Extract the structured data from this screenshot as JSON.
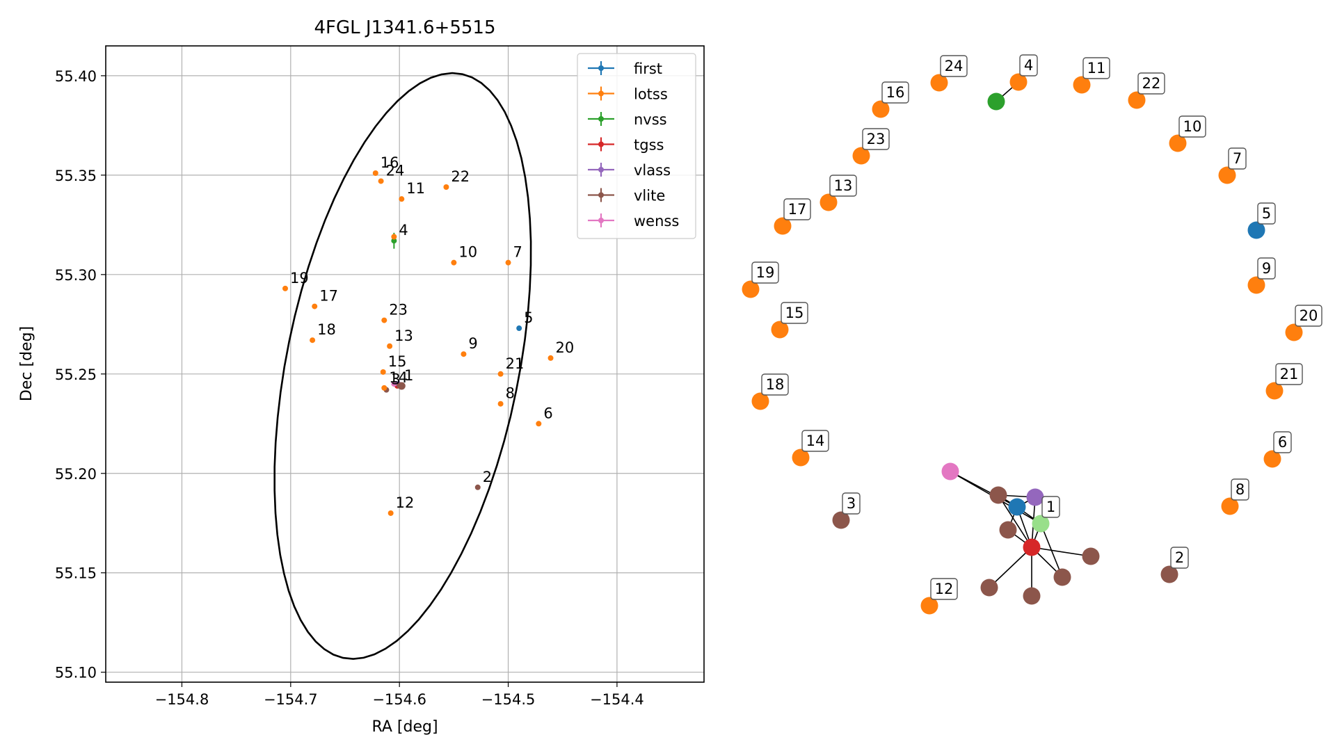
{
  "chart_data": [
    {
      "type": "scatter",
      "title": "4FGL J1341.6+5515",
      "xlabel": "RA [deg]",
      "ylabel": "Dec [deg]",
      "xlim": [
        -154.87,
        -154.32
      ],
      "ylim": [
        55.095,
        55.415
      ],
      "xticks": [
        -154.8,
        -154.7,
        -154.6,
        -154.5,
        -154.4
      ],
      "yticks": [
        55.1,
        55.15,
        55.2,
        55.25,
        55.3,
        55.35,
        55.4
      ],
      "xtick_labels": [
        "−154.8",
        "−154.7",
        "−154.6",
        "−154.5",
        "−154.4"
      ],
      "ytick_labels": [
        "55.10",
        "55.15",
        "55.20",
        "55.25",
        "55.30",
        "55.35",
        "55.40"
      ],
      "grid": true,
      "legend_position": "top-right",
      "legend": [
        {
          "label": "first",
          "color": "#1f77b4"
        },
        {
          "label": "lotss",
          "color": "#ff7f0e"
        },
        {
          "label": "nvss",
          "color": "#2ca02c"
        },
        {
          "label": "tgss",
          "color": "#d62728"
        },
        {
          "label": "vlass",
          "color": "#9467bd"
        },
        {
          "label": "vlite",
          "color": "#8c564b"
        },
        {
          "label": "wenss",
          "color": "#e377c2"
        }
      ],
      "ellipse": {
        "center": [
          -154.597,
          55.254
        ],
        "semi_axes": [
          0.16,
          0.1
        ],
        "angle_deg": 60
      },
      "points": [
        {
          "survey": "first",
          "ra": -154.49,
          "dec": 55.273,
          "label": "5"
        },
        {
          "survey": "first",
          "ra": -154.603,
          "dec": 55.245
        },
        {
          "survey": "nvss",
          "ra": -154.605,
          "dec": 55.317,
          "label": "4",
          "yerr": 0.004
        },
        {
          "survey": "tgss",
          "ra": -154.602,
          "dec": 55.244
        },
        {
          "survey": "vlass",
          "ra": -154.601,
          "dec": 55.245
        },
        {
          "survey": "wenss",
          "ra": -154.605,
          "dec": 55.245
        },
        {
          "survey": "vlite",
          "ra": -154.6,
          "dec": 55.244,
          "label": "1"
        },
        {
          "survey": "vlite",
          "ra": -154.598,
          "dec": 55.244
        },
        {
          "survey": "vlite",
          "ra": -154.612,
          "dec": 55.242,
          "label": "3"
        },
        {
          "survey": "vlite",
          "ra": -154.528,
          "dec": 55.193,
          "label": "2"
        },
        {
          "survey": "lotss",
          "ra": -154.622,
          "dec": 55.351,
          "label": "16"
        },
        {
          "survey": "lotss",
          "ra": -154.617,
          "dec": 55.347,
          "label": "24"
        },
        {
          "survey": "lotss",
          "ra": -154.557,
          "dec": 55.344,
          "label": "22"
        },
        {
          "survey": "lotss",
          "ra": -154.598,
          "dec": 55.338,
          "label": "11"
        },
        {
          "survey": "lotss",
          "ra": -154.605,
          "dec": 55.319
        },
        {
          "survey": "lotss",
          "ra": -154.55,
          "dec": 55.306,
          "label": "10"
        },
        {
          "survey": "lotss",
          "ra": -154.5,
          "dec": 55.306,
          "label": "7"
        },
        {
          "survey": "lotss",
          "ra": -154.705,
          "dec": 55.293,
          "label": "19"
        },
        {
          "survey": "lotss",
          "ra": -154.678,
          "dec": 55.284,
          "label": "17"
        },
        {
          "survey": "lotss",
          "ra": -154.614,
          "dec": 55.277,
          "label": "23"
        },
        {
          "survey": "lotss",
          "ra": -154.68,
          "dec": 55.267,
          "label": "18"
        },
        {
          "survey": "lotss",
          "ra": -154.609,
          "dec": 55.264,
          "label": "13"
        },
        {
          "survey": "lotss",
          "ra": -154.541,
          "dec": 55.26,
          "label": "9"
        },
        {
          "survey": "lotss",
          "ra": -154.461,
          "dec": 55.258,
          "label": "20"
        },
        {
          "survey": "lotss",
          "ra": -154.615,
          "dec": 55.251,
          "label": "15"
        },
        {
          "survey": "lotss",
          "ra": -154.507,
          "dec": 55.25,
          "label": "21"
        },
        {
          "survey": "lotss",
          "ra": -154.614,
          "dec": 55.243,
          "label": "14"
        },
        {
          "survey": "lotss",
          "ra": -154.507,
          "dec": 55.235,
          "label": "8"
        },
        {
          "survey": "lotss",
          "ra": -154.472,
          "dec": 55.225,
          "label": "6"
        },
        {
          "survey": "lotss",
          "ra": -154.608,
          "dec": 55.18,
          "label": "12"
        }
      ]
    },
    {
      "type": "network",
      "nodes": [
        {
          "id": "24",
          "survey": "lotss",
          "label": "24"
        },
        {
          "id": "4",
          "survey": "lotss",
          "label": "4"
        },
        {
          "id": "nvss",
          "survey": "nvss"
        },
        {
          "id": "11",
          "survey": "lotss",
          "label": "11"
        },
        {
          "id": "22",
          "survey": "lotss",
          "label": "22"
        },
        {
          "id": "16",
          "survey": "lotss",
          "label": "16"
        },
        {
          "id": "10",
          "survey": "lotss",
          "label": "10"
        },
        {
          "id": "23",
          "survey": "lotss",
          "label": "23"
        },
        {
          "id": "7",
          "survey": "lotss",
          "label": "7"
        },
        {
          "id": "13",
          "survey": "lotss",
          "label": "13"
        },
        {
          "id": "17",
          "survey": "lotss",
          "label": "17"
        },
        {
          "id": "5",
          "survey": "first",
          "label": "5"
        },
        {
          "id": "9",
          "survey": "lotss",
          "label": "9"
        },
        {
          "id": "19",
          "survey": "lotss",
          "label": "19"
        },
        {
          "id": "20",
          "survey": "lotss",
          "label": "20"
        },
        {
          "id": "15",
          "survey": "lotss",
          "label": "15"
        },
        {
          "id": "21",
          "survey": "lotss",
          "label": "21"
        },
        {
          "id": "18",
          "survey": "lotss",
          "label": "18"
        },
        {
          "id": "14",
          "survey": "lotss",
          "label": "14"
        },
        {
          "id": "6",
          "survey": "lotss",
          "label": "6"
        },
        {
          "id": "8",
          "survey": "lotss",
          "label": "8"
        },
        {
          "id": "3",
          "survey": "vlite",
          "label": "3"
        },
        {
          "id": "2",
          "survey": "vlite",
          "label": "2"
        },
        {
          "id": "12",
          "survey": "lotss",
          "label": "12"
        },
        {
          "id": "wenss",
          "survey": "wenss"
        },
        {
          "id": "vA",
          "survey": "vlite"
        },
        {
          "id": "vlass",
          "survey": "vlass"
        },
        {
          "id": "first1",
          "survey": "first"
        },
        {
          "id": "1",
          "survey": "lotss-hub",
          "label": "1"
        },
        {
          "id": "vB",
          "survey": "vlite"
        },
        {
          "id": "tgss",
          "survey": "tgss"
        },
        {
          "id": "vC",
          "survey": "vlite"
        },
        {
          "id": "vD",
          "survey": "vlite"
        },
        {
          "id": "vE",
          "survey": "vlite"
        },
        {
          "id": "vF",
          "survey": "vlite"
        }
      ],
      "edges": [
        [
          "4",
          "nvss"
        ],
        [
          "wenss",
          "first1"
        ],
        [
          "wenss",
          "1"
        ],
        [
          "vA",
          "first1"
        ],
        [
          "vA",
          "vlass"
        ],
        [
          "vA",
          "tgss"
        ],
        [
          "vlass",
          "tgss"
        ],
        [
          "vlass",
          "first1"
        ],
        [
          "first1",
          "tgss"
        ],
        [
          "first1",
          "1"
        ],
        [
          "first1",
          "vB"
        ],
        [
          "1",
          "tgss"
        ],
        [
          "1",
          "vD"
        ],
        [
          "vB",
          "tgss"
        ],
        [
          "tgss",
          "vC"
        ],
        [
          "tgss",
          "vD"
        ],
        [
          "tgss",
          "vE"
        ],
        [
          "tgss",
          "vF"
        ]
      ]
    }
  ]
}
